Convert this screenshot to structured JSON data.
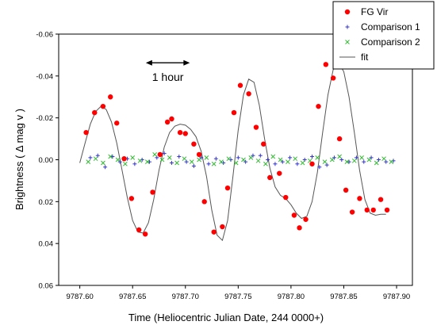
{
  "chart_data": {
    "type": "scatter",
    "xlabel": "Time (Heliocentric Julian Date, 244 0000+)",
    "ylabel": "Brightness (   Δ mag v )",
    "xlim": [
      9787.58,
      9787.915
    ],
    "ylim": [
      0.06,
      -0.06
    ],
    "y_inverted": true,
    "x_ticks": [
      "9787.60",
      "9787.65",
      "9787.70",
      "9787.75",
      "9787.80",
      "9787.85",
      "9787.90"
    ],
    "x_tick_values": [
      9787.6,
      9787.65,
      9787.7,
      9787.75,
      9787.8,
      9787.85,
      9787.9
    ],
    "y_ticks": [
      "-0.06",
      "-0.04",
      "-0.02",
      "0.00",
      "0.02",
      "0.04",
      "0.06"
    ],
    "y_tick_values": [
      -0.06,
      -0.04,
      -0.02,
      0.0,
      0.02,
      0.04,
      0.06
    ],
    "grid": false,
    "legend_position": "top-right",
    "annotation": {
      "text": "1 hour",
      "x_start": 9787.6625,
      "x_end": 9787.7042,
      "y": -0.0463
    },
    "series": [
      {
        "name": "FG Vir",
        "marker": "filled-circle",
        "color": "#ff0000",
        "x": [
          9787.606,
          9787.614,
          9787.622,
          9787.629,
          9787.635,
          9787.642,
          9787.649,
          9787.656,
          9787.662,
          9787.669,
          9787.676,
          9787.683,
          9787.687,
          9787.695,
          9787.7,
          9787.708,
          9787.713,
          9787.718,
          9787.727,
          9787.735,
          9787.74,
          9787.746,
          9787.752,
          9787.76,
          9787.767,
          9787.774,
          9787.78,
          9787.789,
          9787.795,
          9787.803,
          9787.808,
          9787.814,
          9787.82,
          9787.826,
          9787.833,
          9787.84,
          9787.846,
          9787.852,
          9787.858,
          9787.865,
          9787.872,
          9787.878,
          9787.885,
          9787.891
        ],
        "y": [
          -0.013,
          -0.0225,
          -0.0255,
          -0.03,
          -0.0175,
          -0.0005,
          0.0185,
          0.0335,
          0.0355,
          0.0155,
          -0.0025,
          -0.018,
          -0.0195,
          -0.013,
          -0.0125,
          -0.0075,
          -0.0025,
          0.02,
          0.0345,
          0.032,
          0.0135,
          -0.0225,
          -0.0355,
          -0.0315,
          -0.0155,
          -0.0075,
          0.0085,
          0.0065,
          0.018,
          0.0265,
          0.0325,
          0.0285,
          0.002,
          -0.0255,
          -0.0455,
          -0.039,
          -0.01,
          0.0145,
          0.025,
          0.0185,
          0.024,
          0.024,
          0.019,
          0.024
        ]
      },
      {
        "name": "Comparison 1",
        "marker": "plus",
        "color": "#3333cc",
        "x": [
          9787.61,
          9787.617,
          9787.624,
          9787.631,
          9787.638,
          9787.645,
          9787.652,
          9787.659,
          9787.666,
          9787.673,
          9787.68,
          9787.687,
          9787.694,
          9787.701,
          9787.708,
          9787.715,
          9787.722,
          9787.729,
          9787.736,
          9787.743,
          9787.75,
          9787.757,
          9787.764,
          9787.771,
          9787.778,
          9787.785,
          9787.792,
          9787.799,
          9787.806,
          9787.813,
          9787.82,
          9787.827,
          9787.834,
          9787.841,
          9787.848,
          9787.855,
          9787.862,
          9787.869,
          9787.876,
          9787.883,
          9787.89,
          9787.897
        ],
        "y": [
          -0.001,
          -0.002,
          0.0035,
          -0.0015,
          0.001,
          -0.0005,
          0.002,
          0.0,
          0.001,
          -0.001,
          -0.003,
          0.0015,
          -0.0015,
          0.001,
          0.003,
          -0.001,
          0.002,
          -0.0005,
          0.0015,
          0.0,
          -0.001,
          0.001,
          -0.002,
          -0.002,
          0.0,
          0.002,
          0.001,
          -0.001,
          0.002,
          0.0,
          -0.0015,
          0.0035,
          0.0025,
          -0.001,
          0.0,
          0.001,
          -0.001,
          0.001,
          -0.001,
          0.0,
          0.001,
          0.0005
        ]
      },
      {
        "name": "Comparison 2",
        "marker": "cross",
        "color": "#33bb33",
        "x": [
          9787.608,
          9787.615,
          9787.622,
          9787.629,
          9787.636,
          9787.643,
          9787.65,
          9787.657,
          9787.664,
          9787.671,
          9787.678,
          9787.685,
          9787.692,
          9787.699,
          9787.706,
          9787.713,
          9787.72,
          9787.727,
          9787.734,
          9787.741,
          9787.748,
          9787.755,
          9787.762,
          9787.769,
          9787.776,
          9787.783,
          9787.79,
          9787.797,
          9787.804,
          9787.811,
          9787.818,
          9787.825,
          9787.832,
          9787.839,
          9787.846,
          9787.853,
          9787.86,
          9787.867,
          9787.874,
          9787.881,
          9787.888,
          9787.895
        ],
        "y": [
          0.001,
          -0.0005,
          0.0015,
          -0.0015,
          0.0,
          0.002,
          -0.001,
          0.0005,
          0.001,
          -0.0025,
          0.0,
          -0.001,
          0.0015,
          -0.0005,
          0.001,
          0.0,
          -0.001,
          0.002,
          0.001,
          -0.0005,
          0.0015,
          0.0,
          -0.001,
          0.0005,
          0.002,
          -0.0015,
          0.0,
          0.001,
          -0.0005,
          0.0015,
          0.0005,
          -0.001,
          0.001,
          0.0,
          -0.0015,
          0.001,
          0.0005,
          -0.001,
          0.0,
          0.0015,
          -0.0005,
          0.001
        ]
      },
      {
        "name": "fit",
        "type": "line",
        "color": "#555555",
        "x": [
          9787.6,
          9787.605,
          9787.61,
          9787.615,
          9787.62,
          9787.625,
          9787.63,
          9787.635,
          9787.64,
          9787.645,
          9787.65,
          9787.655,
          9787.66,
          9787.665,
          9787.67,
          9787.675,
          9787.68,
          9787.685,
          9787.69,
          9787.695,
          9787.7,
          9787.705,
          9787.71,
          9787.715,
          9787.72,
          9787.725,
          9787.73,
          9787.735,
          9787.74,
          9787.745,
          9787.75,
          9787.755,
          9787.76,
          9787.765,
          9787.77,
          9787.775,
          9787.78,
          9787.785,
          9787.79,
          9787.795,
          9787.8,
          9787.805,
          9787.81,
          9787.815,
          9787.82,
          9787.825,
          9787.83,
          9787.835,
          9787.84,
          9787.845,
          9787.85,
          9787.855,
          9787.86,
          9787.865,
          9787.87,
          9787.875,
          9787.88,
          9787.885,
          9787.89
        ],
        "y": [
          0.0015,
          -0.008,
          -0.017,
          -0.023,
          -0.0255,
          -0.024,
          -0.018,
          -0.008,
          0.005,
          0.018,
          0.029,
          0.0345,
          0.035,
          0.03,
          0.019,
          0.005,
          -0.006,
          -0.013,
          -0.016,
          -0.017,
          -0.0165,
          -0.0145,
          -0.011,
          -0.004,
          0.008,
          0.024,
          0.036,
          0.0385,
          0.029,
          0.008,
          -0.014,
          -0.031,
          -0.0385,
          -0.037,
          -0.026,
          -0.01,
          0.004,
          0.013,
          0.017,
          0.0185,
          0.0215,
          0.0255,
          0.028,
          0.027,
          0.02,
          0.006,
          -0.013,
          -0.031,
          -0.043,
          -0.0465,
          -0.042,
          -0.03,
          -0.013,
          0.005,
          0.019,
          0.0255,
          0.0265,
          0.026,
          0.026
        ]
      }
    ]
  }
}
